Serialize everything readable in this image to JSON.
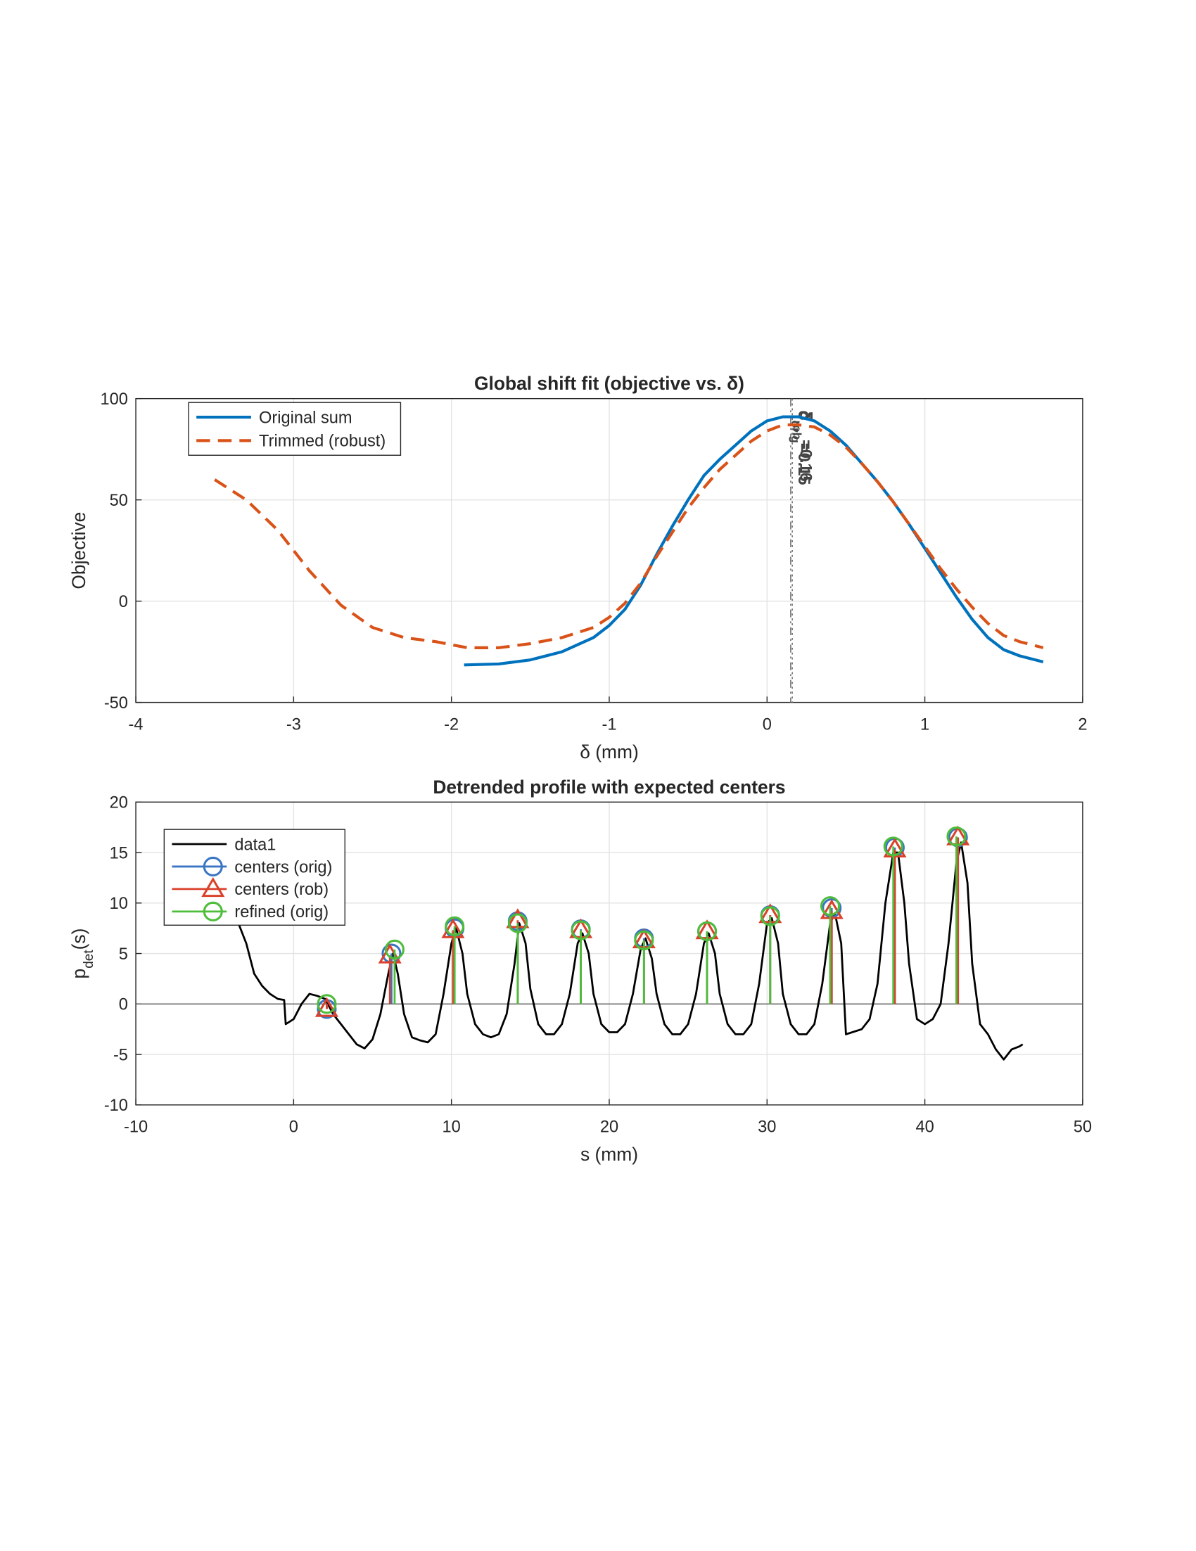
{
  "chart_data": [
    {
      "type": "line",
      "title": "Global shift fit (objective vs. δ)",
      "xlabel": [
        "δ",
        " (mm)"
      ],
      "ylabel": [
        "Objective"
      ],
      "xlim": [
        -4,
        2
      ],
      "xticks": [
        -4,
        -3,
        -2,
        -1,
        0,
        1,
        2
      ],
      "ylim": [
        -50,
        100
      ],
      "yticks": [
        -50,
        0,
        50,
        100
      ],
      "grid": true,
      "legend": "top-left",
      "series": [
        {
          "name": "Original sum",
          "color": "#0072bd",
          "style": "solid",
          "x": [
            -1.92,
            -1.7,
            -1.5,
            -1.3,
            -1.1,
            -1.0,
            -0.9,
            -0.8,
            -0.7,
            -0.6,
            -0.5,
            -0.4,
            -0.3,
            -0.2,
            -0.1,
            0,
            0.1,
            0.2,
            0.3,
            0.4,
            0.5,
            0.6,
            0.7,
            0.8,
            0.9,
            1.0,
            1.1,
            1.2,
            1.3,
            1.4,
            1.5,
            1.6,
            1.75
          ],
          "values": [
            -31.5,
            -31,
            -29,
            -25,
            -18,
            -12,
            -4,
            8,
            23,
            37,
            50,
            62,
            70,
            77,
            84,
            89,
            91,
            91,
            89,
            84,
            77,
            68,
            59,
            49,
            38,
            26,
            14,
            2,
            -9,
            -18,
            -24,
            -27,
            -30
          ]
        },
        {
          "name": "Trimmed (robust)",
          "color": "#d95319",
          "style": "dashed",
          "x": [
            -3.5,
            -3.3,
            -3.1,
            -2.9,
            -2.7,
            -2.5,
            -2.3,
            -2.1,
            -1.9,
            -1.7,
            -1.5,
            -1.3,
            -1.1,
            -1.0,
            -0.9,
            -0.8,
            -0.7,
            -0.6,
            -0.5,
            -0.4,
            -0.3,
            -0.2,
            -0.1,
            0,
            0.1,
            0.2,
            0.3,
            0.4,
            0.5,
            0.6,
            0.7,
            0.8,
            0.9,
            1.0,
            1.1,
            1.2,
            1.3,
            1.4,
            1.5,
            1.6,
            1.75
          ],
          "values": [
            60,
            50,
            35,
            15,
            -2,
            -13,
            -18,
            -20,
            -23,
            -23,
            -21,
            -18,
            -13,
            -8,
            -1,
            9,
            22,
            34,
            46,
            56,
            65,
            72,
            79,
            84,
            87,
            87,
            86,
            82,
            76,
            68,
            59,
            49,
            38,
            27,
            16,
            6,
            -3,
            -11,
            -17,
            -20,
            -23
          ]
        }
      ],
      "vlines": [
        {
          "value": 0.15,
          "style": "dashdot",
          "label": [
            "δ",
            "orig",
            "=0.15"
          ]
        },
        {
          "value": 0.16,
          "style": "dotted",
          "label": [
            "δ",
            "rob",
            "=0.16"
          ]
        }
      ]
    },
    {
      "type": "line",
      "title": "Detrended profile with expected centers",
      "xlabel": [
        "s (mm)"
      ],
      "ylabel": [
        "p",
        "det",
        "(s)"
      ],
      "xlim": [
        -10,
        50
      ],
      "xticks": [
        -10,
        0,
        10,
        20,
        30,
        40,
        50
      ],
      "ylim": [
        -10,
        20
      ],
      "yticks": [
        -10,
        -5,
        0,
        5,
        10,
        15,
        20
      ],
      "grid": true,
      "legend": "top-left",
      "series": [
        {
          "name": "data1",
          "color": "#000000",
          "style": "solid",
          "x": [
            -3.5,
            -3,
            -2.5,
            -2,
            -1.5,
            -1,
            -0.6,
            -0.5,
            0,
            0.5,
            1,
            1.5,
            2,
            2.5,
            3,
            3.5,
            4,
            4.5,
            5,
            5.5,
            6,
            6.3,
            6.6,
            7,
            7.5,
            8,
            8.5,
            9,
            9.5,
            10,
            10.3,
            10.7,
            11,
            11.5,
            12,
            12.5,
            13,
            13.5,
            14,
            14.3,
            14.7,
            15,
            15.5,
            16,
            16.5,
            17,
            17.5,
            18,
            18.3,
            18.7,
            19,
            19.5,
            20,
            20.5,
            21,
            21.5,
            22,
            22.3,
            22.7,
            23,
            23.5,
            24,
            24.5,
            25,
            25.5,
            26,
            26.3,
            26.7,
            27,
            27.5,
            28,
            28.5,
            29,
            29.5,
            30,
            30.3,
            30.7,
            31,
            31.5,
            32,
            32.5,
            33,
            33.5,
            34,
            34.3,
            34.7,
            35,
            36,
            36.5,
            37,
            37.5,
            38,
            38.3,
            38.7,
            39,
            39.5,
            40,
            40.5,
            41,
            41.5,
            42,
            42.3,
            42.7,
            43,
            43.5,
            44,
            44.5,
            45,
            45.5,
            46,
            46.2
          ],
          "values": [
            8,
            6,
            3,
            1.8,
            1,
            0.5,
            0.4,
            -2,
            -1.5,
            0,
            1,
            0.8,
            0.5,
            -1,
            -2,
            -3,
            -4,
            -4.4,
            -3.5,
            -1,
            3,
            5,
            3,
            -1,
            -3.3,
            -3.6,
            -3.8,
            -3,
            1,
            6,
            7.5,
            5,
            1,
            -2,
            -3,
            -3.3,
            -3,
            -1,
            4,
            8,
            6,
            1.5,
            -2,
            -3,
            -3,
            -2,
            1,
            6,
            7,
            5,
            1,
            -2,
            -2.8,
            -2.8,
            -2,
            1,
            5.5,
            6.5,
            4.5,
            1,
            -2,
            -3,
            -3,
            -2,
            1,
            6,
            7,
            5,
            1,
            -2,
            -3,
            -3,
            -2,
            2,
            8,
            8.5,
            6,
            1,
            -2,
            -3,
            -3,
            -2,
            2,
            8,
            9,
            6,
            -3,
            -2.5,
            -1.5,
            2,
            10,
            15,
            15,
            10,
            4,
            -1.5,
            -2,
            -1.5,
            0,
            6,
            14,
            16,
            12,
            4,
            -2,
            -3,
            -4.5,
            -5.5,
            -4.5,
            -4.2,
            -4
          ]
        },
        {
          "name": "centers (orig)",
          "color": "#3a76c4",
          "style": "stem",
          "marker": "circle",
          "x": [
            2.1,
            6.2,
            10.2,
            14.2,
            18.2,
            22.2,
            26.2,
            30.2,
            34.1,
            38.1,
            42.1
          ],
          "values": [
            -0.5,
            5,
            7.5,
            8.2,
            7.4,
            6.5,
            7.2,
            8.8,
            9.5,
            15.5,
            16.5
          ]
        },
        {
          "name": "centers (rob)",
          "color": "#d9412b",
          "style": "stem",
          "marker": "triangle",
          "x": [
            2.1,
            6.1,
            10.1,
            14.2,
            18.2,
            22.2,
            26.2,
            30.2,
            34.1,
            38.1,
            42.1
          ],
          "values": [
            -0.5,
            4.8,
            7.3,
            8.3,
            7.3,
            6.3,
            7.2,
            8.8,
            9.2,
            15.3,
            16.5
          ]
        },
        {
          "name": "refined (orig)",
          "color": "#4dbd3a",
          "style": "stem",
          "marker": "circle",
          "x": [
            2.1,
            6.4,
            10.2,
            14.2,
            18.2,
            22.2,
            26.2,
            30.2,
            34.0,
            38.0,
            42.0
          ],
          "values": [
            0,
            5.4,
            7.7,
            8,
            7.3,
            6.3,
            7.2,
            8.7,
            9.7,
            15.6,
            16.6
          ]
        }
      ]
    }
  ]
}
